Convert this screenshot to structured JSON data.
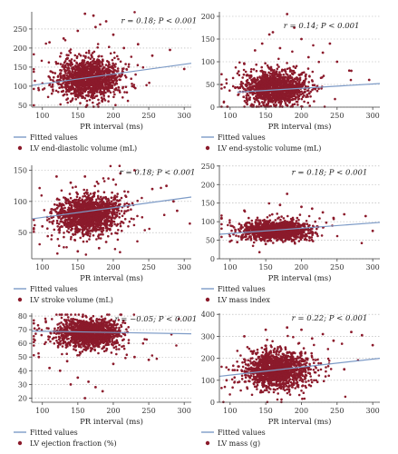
{
  "chart_data": [
    {
      "type": "scatter",
      "annotation": "r = 0.18; P < 0.001",
      "xlabel": "PR interval (ms)",
      "ylabel": "",
      "xlim": [
        85,
        310
      ],
      "ylim": [
        45,
        295
      ],
      "xticks": [
        100,
        150,
        200,
        250,
        300
      ],
      "yticks": [
        50,
        100,
        150,
        200,
        250
      ],
      "grid": "horizontal dotted",
      "legend_position": "bottom",
      "series": [
        {
          "name": "Fitted values",
          "kind": "line",
          "x": [
            85,
            310
          ],
          "y": [
            102,
            160
          ]
        },
        {
          "name": "LV end-diastolic volume (mL)",
          "kind": "points",
          "x_center": 165,
          "x_spread": 22,
          "y_center": 120,
          "y_spread": 25,
          "n": 1400,
          "x_outliers": [
            130,
            150,
            160,
            172,
            190,
            215,
            235,
            95,
            280,
            300,
            255,
            110,
            140,
            200,
            175
          ],
          "y_outliers": [
            225,
            245,
            290,
            285,
            270,
            200,
            210,
            90,
            195,
            145,
            180,
            215,
            60,
            235,
            255
          ]
        }
      ]
    },
    {
      "type": "scatter",
      "annotation": "r = 0.14; P < 0.001",
      "xlabel": "PR interval (ms)",
      "ylabel": "",
      "xlim": [
        85,
        310
      ],
      "ylim": [
        0,
        210
      ],
      "xticks": [
        100,
        150,
        200,
        250,
        300
      ],
      "yticks": [
        0,
        50,
        100,
        150,
        200
      ],
      "grid": "horizontal dotted",
      "legend_position": "bottom",
      "series": [
        {
          "name": "Fitted values",
          "kind": "line",
          "x": [
            110,
            310
          ],
          "y": [
            33,
            52
          ]
        },
        {
          "name": "LV end-systolic volume (mL)",
          "kind": "points",
          "x_center": 165,
          "x_spread": 22,
          "y_center": 42,
          "y_spread": 18,
          "n": 1400,
          "x_outliers": [
            180,
            160,
            200,
            145,
            230,
            250,
            190,
            120,
            295,
            270,
            170,
            210,
            135,
            240,
            155
          ],
          "y_outliers": [
            205,
            165,
            150,
            140,
            120,
            100,
            175,
            95,
            60,
            80,
            130,
            110,
            125,
            140,
            160
          ]
        }
      ]
    },
    {
      "type": "scatter",
      "annotation": "r = 0.18; P < 0.001",
      "xlabel": "PR interval (ms)",
      "ylabel": "",
      "xlim": [
        85,
        310
      ],
      "ylim": [
        8,
        158
      ],
      "xticks": [
        100,
        150,
        200,
        250,
        300
      ],
      "yticks": [
        50,
        100,
        150
      ],
      "grid": "horizontal dotted",
      "legend_position": "bottom",
      "series": [
        {
          "name": "Fitted values",
          "kind": "line",
          "x": [
            85,
            310
          ],
          "y": [
            72,
            107
          ]
        },
        {
          "name": "LV stroke volume (mL)",
          "kind": "points",
          "x_center": 165,
          "x_spread": 22,
          "y_center": 80,
          "y_spread": 15,
          "n": 1400,
          "x_outliers": [
            160,
            200,
            230,
            180,
            255,
            285,
            290,
            120,
            150,
            140,
            210,
            100,
            275,
            190
          ],
          "y_outliers": [
            140,
            135,
            150,
            25,
            120,
            100,
            85,
            140,
            20,
            130,
            145,
            60,
            125,
            35
          ]
        }
      ]
    },
    {
      "type": "scatter",
      "annotation": "r = 0.18; P < 0.001",
      "xlabel": "PR interval (ms)",
      "ylabel": "",
      "xlim": [
        85,
        310
      ],
      "ylim": [
        0,
        252
      ],
      "xticks": [
        100,
        150,
        200,
        250,
        300
      ],
      "yticks": [
        0,
        50,
        100,
        150,
        200,
        250
      ],
      "grid": "horizontal dotted",
      "legend_position": "bottom",
      "series": [
        {
          "name": "Fitted values",
          "kind": "line",
          "x": [
            85,
            310
          ],
          "y": [
            66,
            98
          ]
        },
        {
          "name": "LV mass index",
          "kind": "points",
          "x_center": 165,
          "x_spread": 22,
          "y_center": 76,
          "y_spread": 12,
          "n": 1400,
          "x_outliers": [
            180,
            170,
            200,
            230,
            260,
            290,
            300,
            120,
            150,
            215,
            245,
            110
          ],
          "y_outliers": [
            175,
            145,
            140,
            125,
            120,
            115,
            75,
            130,
            40,
            135,
            110,
            45
          ]
        }
      ]
    },
    {
      "type": "scatter",
      "annotation": "r = −0.05; P < 0.001",
      "xlabel": "PR interval (ms)",
      "ylabel": "",
      "xlim": [
        85,
        310
      ],
      "ylim": [
        17,
        82
      ],
      "xticks": [
        100,
        150,
        200,
        250,
        300
      ],
      "yticks": [
        20,
        30,
        40,
        50,
        60,
        70,
        80
      ],
      "grid": "horizontal dotted",
      "legend_position": "bottom",
      "series": [
        {
          "name": "Fitted values",
          "kind": "line",
          "x": [
            85,
            310
          ],
          "y": [
            69,
            67
          ]
        },
        {
          "name": "LV ejection fraction (%)",
          "kind": "points",
          "x_center": 165,
          "x_spread": 22,
          "y_center": 67,
          "y_spread": 5,
          "n": 1400,
          "x_outliers": [
            140,
            125,
            160,
            175,
            200,
            230,
            150,
            110,
            95,
            250,
            185,
            135,
            165
          ],
          "y_outliers": [
            30,
            40,
            20,
            28,
            45,
            50,
            35,
            42,
            50,
            48,
            25,
            47,
            32
          ]
        }
      ]
    },
    {
      "type": "scatter",
      "annotation": "r = 0.22; P < 0.001",
      "xlabel": "PR interval (ms)",
      "ylabel": "",
      "xlim": [
        85,
        310
      ],
      "ylim": [
        0,
        405
      ],
      "xticks": [
        100,
        150,
        200,
        250,
        300
      ],
      "yticks": [
        0,
        100,
        200,
        300,
        400
      ],
      "grid": "horizontal dotted",
      "legend_position": "bottom",
      "series": [
        {
          "name": "Fitted values",
          "kind": "line",
          "x": [
            85,
            310
          ],
          "y": [
            118,
            200
          ]
        },
        {
          "name": "LV mass (g)",
          "kind": "points",
          "x_center": 165,
          "x_spread": 22,
          "y_center": 145,
          "y_spread": 40,
          "n": 1400,
          "x_outliers": [
            200,
            230,
            270,
            285,
            150,
            120,
            260,
            300,
            180,
            95,
            245,
            215
          ],
          "y_outliers": [
            330,
            310,
            320,
            305,
            330,
            300,
            150,
            260,
            340,
            100,
            280,
            290
          ]
        }
      ]
    }
  ],
  "style": {
    "point_color": "#8b1a2b",
    "line_color": "#7d9bc7",
    "grid_color": "#b0b0b0",
    "axis_color": "#444444"
  }
}
